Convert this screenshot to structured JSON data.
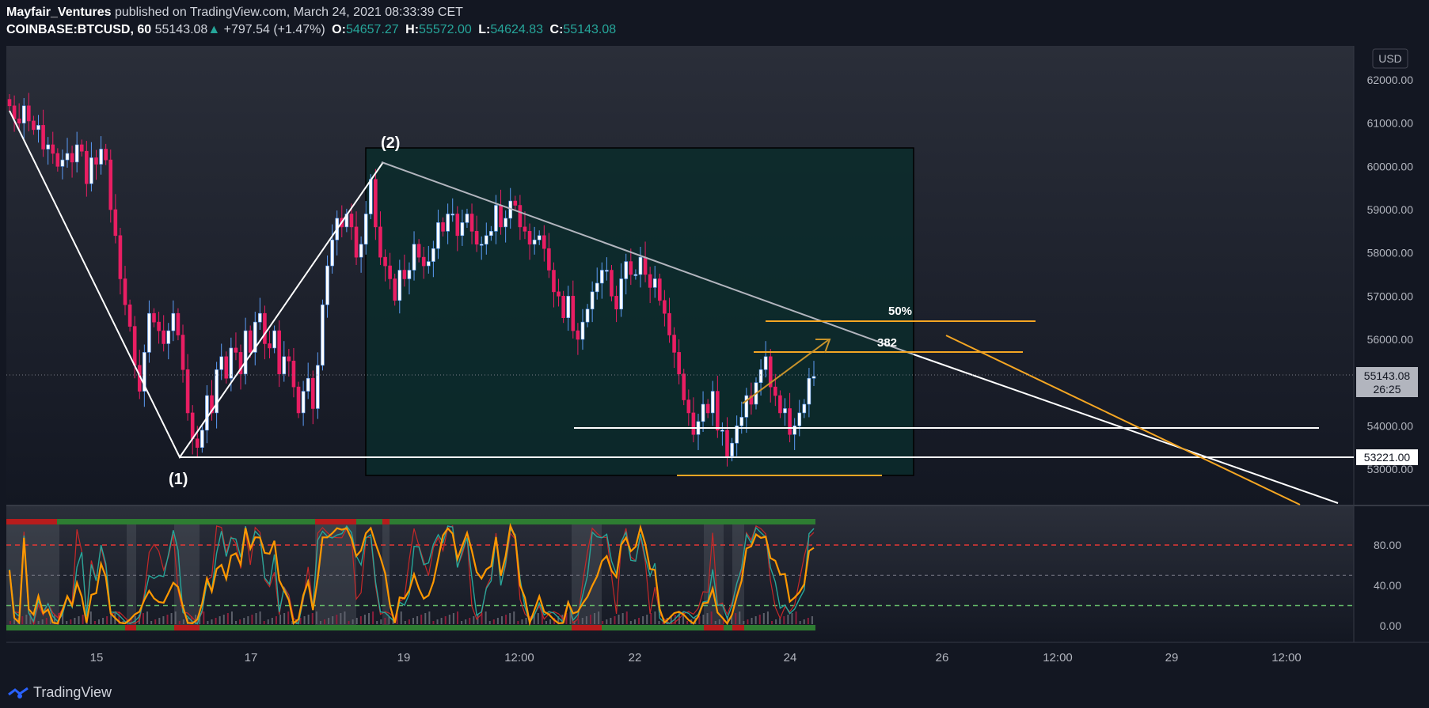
{
  "header": {
    "author": "Mayfair_Ventures",
    "published": "published on TradingView.com, March 24, 2021 08:33:39 CET",
    "symbol": "COINBASE:BTCUSD, 60",
    "last": "55143.08",
    "change_arrow": "▲",
    "change": "+797.54 (+1.47%)",
    "open_label": "O:",
    "open": "54657.27",
    "high_label": "H:",
    "high": "55572.00",
    "low_label": "L:",
    "low": "54624.83",
    "close_label": "C:",
    "close": "55143.08"
  },
  "footer": {
    "brand": "TradingView"
  },
  "colors": {
    "background": "#131722",
    "bull": "#5b9cf6",
    "bear": "#e91e63",
    "wedge_box": "#0b2b2b",
    "fib": "#f5a623",
    "stoch_k": "#26a69a",
    "stoch_d": "#ff9800",
    "stoch_fast": "#c62828",
    "level_hi": "#e53935",
    "level_lo": "#66bb6a"
  },
  "chart_data": [
    {
      "type": "candlestick",
      "currency_badge": "USD",
      "y_ticks": [
        "62000.00",
        "61000.00",
        "60000.00",
        "59000.00",
        "58000.00",
        "57000.00",
        "56000.00",
        "55000.00",
        "54000.00",
        "53000.00"
      ],
      "ylim": [
        52200,
        62600
      ],
      "x_ticks": [
        "15",
        "17",
        "19",
        "12:00",
        "22",
        "24",
        "26",
        "12:00",
        "29",
        "12:00"
      ],
      "last_price_label": "55143.08",
      "countdown_label": "26:25",
      "support_label": "53221.00",
      "wave_labels": [
        "(1)",
        "(2)"
      ],
      "fib_labels": [
        "50%",
        "382"
      ],
      "close_series": [
        61400,
        61100,
        61000,
        61400,
        61050,
        60850,
        60950,
        60400,
        60500,
        60300,
        60000,
        60150,
        60300,
        60100,
        60500,
        60350,
        59600,
        60200,
        60050,
        60400,
        60150,
        59000,
        58400,
        57400,
        56800,
        56300,
        55400,
        54800,
        55700,
        56600,
        56400,
        56200,
        55900,
        56200,
        56600,
        56100,
        55300,
        54300,
        53700,
        53500,
        53900,
        54700,
        54300,
        55300,
        55600,
        55100,
        55800,
        55700,
        55200,
        56200,
        55700,
        56400,
        56600,
        55900,
        55800,
        56200,
        55200,
        55600,
        55500,
        54900,
        54300,
        54800,
        55100,
        54400,
        55400,
        56800,
        57700,
        58300,
        58800,
        58600,
        58900,
        58600,
        57900,
        58200,
        58900,
        59700,
        58600,
        57900,
        57700,
        57400,
        56900,
        57600,
        57400,
        57600,
        58200,
        57900,
        57700,
        57800,
        58100,
        58700,
        58500,
        58900,
        58900,
        58400,
        58700,
        58900,
        58500,
        58200,
        58200,
        58400,
        58500,
        59100,
        58600,
        58800,
        59200,
        59100,
        58600,
        58500,
        58200,
        58300,
        58400,
        58100,
        57600,
        57100,
        57000,
        56500,
        57000,
        56200,
        56000,
        56400,
        56700,
        57100,
        57300,
        57600,
        57600,
        57000,
        56700,
        57400,
        57800,
        57500,
        57500,
        57900,
        57500,
        57200,
        57400,
        56900,
        56600,
        56100,
        55700,
        55200,
        54600,
        54300,
        53800,
        54100,
        54500,
        54300,
        54800,
        53900,
        53900,
        53300,
        53600,
        54000,
        54200,
        54700,
        54500,
        55000,
        55300,
        55600,
        54900,
        54700,
        54300,
        54400,
        53800,
        54000,
        54300,
        54500,
        55100,
        55143
      ]
    },
    {
      "type": "line",
      "name": "stochastic",
      "y_ticks": [
        "80.00",
        "40.00",
        "0.00"
      ],
      "ylim": [
        -10,
        115
      ],
      "levels": [
        80,
        50,
        20
      ]
    }
  ]
}
